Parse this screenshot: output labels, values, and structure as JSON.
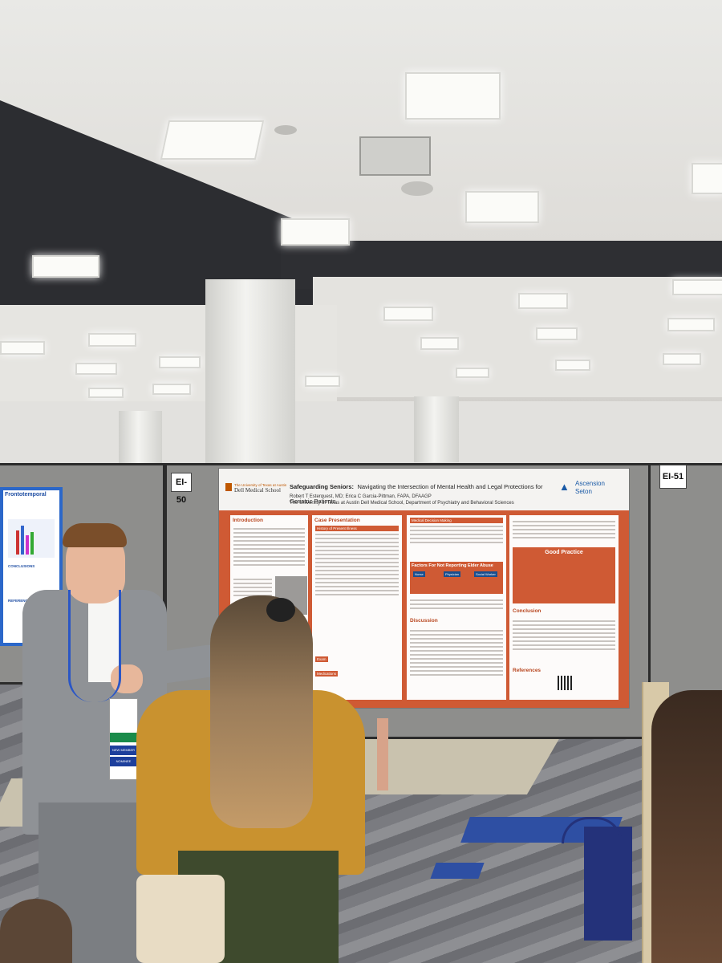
{
  "booths": {
    "left_tag": "EI-50",
    "right_tag": "EI-51"
  },
  "poster": {
    "title_bold": "Safeguarding Seniors:",
    "title_rest": "Navigating the Intersection of Mental Health and Legal Protections for Geriatric Patients",
    "authors": "Robert T Esterquest, MD; Erica C Garcia-Pittman, FAPA, DFAAGP",
    "affiliation": "The University of Texas at Austin Dell Medical School, Department of Psychiatry and Behavioral Sciences",
    "logo_university_line1": "The University of Texas at Austin",
    "logo_university_line2": "Dell Medical School",
    "logo_partner_line1": "Ascension",
    "logo_partner_line2": "Seton",
    "sections": {
      "introduction": "Introduction",
      "case_presentation": "Case Presentation",
      "history": "History of Present Illness",
      "medical_decision": "Medical Decision Making",
      "factors": "Factors For Not Reporting Elder Abuse",
      "roles": [
        "Nurse",
        "Physician",
        "Social Worker"
      ],
      "discussion": "Discussion",
      "good_practice": "Good Practice",
      "conclusion": "Conclusion",
      "references": "References",
      "exam": "Exam",
      "medications": "Medications"
    }
  },
  "left_poster": {
    "heading": "Frontotemporal",
    "conclusions": "CONCLUSIONS",
    "references": "REFERENCES"
  },
  "badge": {
    "ribbon_1": "NEW MEMBER",
    "ribbon_2": "NOMINEE"
  }
}
